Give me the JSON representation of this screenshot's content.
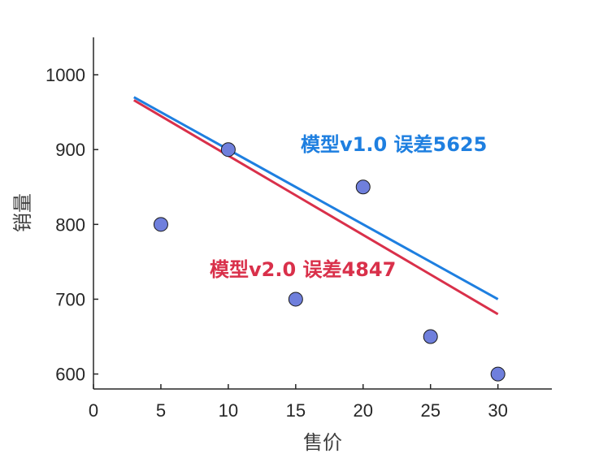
{
  "chart_data": {
    "type": "scatter",
    "title": "",
    "xlabel": "售价",
    "ylabel": "销量",
    "xlim": [
      0,
      34
    ],
    "ylim": [
      580,
      1050
    ],
    "xticks": [
      0,
      5,
      10,
      15,
      20,
      25,
      30
    ],
    "yticks": [
      600,
      700,
      800,
      900,
      1000
    ],
    "grid": false,
    "points": {
      "color": "#6f7fdc",
      "x": [
        5,
        10,
        15,
        20,
        25,
        30
      ],
      "y": [
        800,
        900,
        700,
        850,
        650,
        600
      ]
    },
    "lines": [
      {
        "label": "模型v1.0 误差5625",
        "color": "#1e7fe0",
        "x": [
          3,
          30
        ],
        "y": [
          970,
          700
        ]
      },
      {
        "label": "模型v2.0 误差4847",
        "color": "#d9304a",
        "x": [
          3,
          30
        ],
        "y": [
          966,
          680
        ]
      }
    ]
  }
}
